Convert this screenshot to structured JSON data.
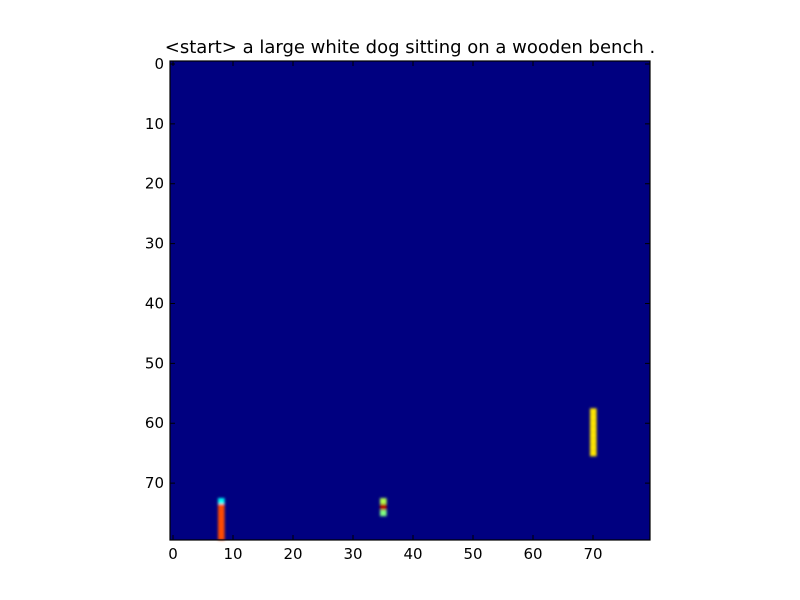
{
  "chart_data": {
    "type": "heatmap",
    "title": "<start> a large white dog sitting on a wooden bench .",
    "xlabel": "",
    "ylabel": "",
    "grid_size": [
      80,
      80
    ],
    "xlim": [
      0,
      79
    ],
    "ylim": [
      79,
      0
    ],
    "x_ticks": [
      0,
      10,
      20,
      30,
      40,
      50,
      60,
      70
    ],
    "y_ticks": [
      0,
      10,
      20,
      30,
      40,
      50,
      60,
      70
    ],
    "grid": false,
    "colormap": "jet",
    "colors": {
      "background": "#000080",
      "frame": "#000000"
    },
    "cells": [
      {
        "x": 8,
        "y": 73,
        "value": 0.38
      },
      {
        "x": 8,
        "y": 74,
        "value": 0.8
      },
      {
        "x": 8,
        "y": 75,
        "value": 0.8
      },
      {
        "x": 8,
        "y": 76,
        "value": 0.8
      },
      {
        "x": 8,
        "y": 77,
        "value": 0.8
      },
      {
        "x": 8,
        "y": 78,
        "value": 0.8
      },
      {
        "x": 8,
        "y": 79,
        "value": 0.8
      },
      {
        "x": 35,
        "y": 73,
        "value": 0.55
      },
      {
        "x": 35,
        "y": 74,
        "value": 0.95
      },
      {
        "x": 35,
        "y": 75,
        "value": 0.5
      },
      {
        "x": 70,
        "y": 58,
        "value": 0.65
      },
      {
        "x": 70,
        "y": 59,
        "value": 0.65
      },
      {
        "x": 70,
        "y": 60,
        "value": 0.65
      },
      {
        "x": 70,
        "y": 61,
        "value": 0.65
      },
      {
        "x": 70,
        "y": 62,
        "value": 0.65
      },
      {
        "x": 70,
        "y": 63,
        "value": 0.65
      },
      {
        "x": 70,
        "y": 64,
        "value": 0.65
      },
      {
        "x": 70,
        "y": 65,
        "value": 0.65
      }
    ]
  }
}
